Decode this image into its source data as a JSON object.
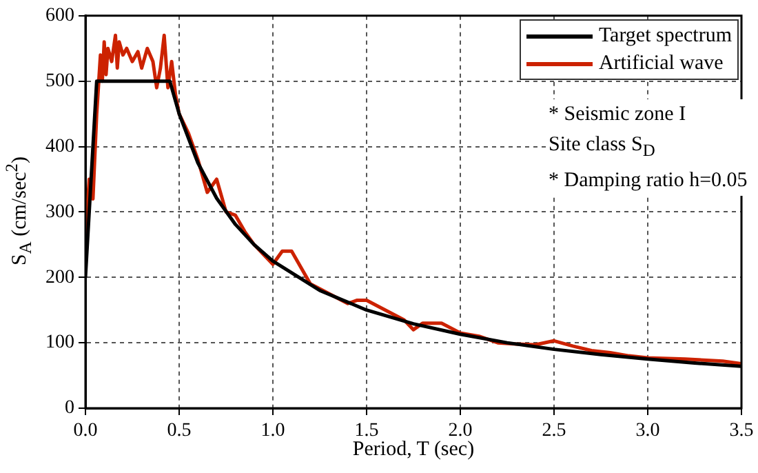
{
  "chart_data": {
    "type": "line",
    "xlabel": "Period, T (sec)",
    "ylabel": "S$_{A}$ (cm/sec$^{2}$)",
    "xlim": [
      0,
      3.5
    ],
    "xticks": [
      {
        "value": 0,
        "label": "0.0"
      },
      {
        "value": 0.5,
        "label": "0.5"
      },
      {
        "value": 1,
        "label": "1.0"
      },
      {
        "value": 1.5,
        "label": "1.5"
      },
      {
        "value": 2,
        "label": "2.0"
      },
      {
        "value": 2.5,
        "label": "2.5"
      },
      {
        "value": 3,
        "label": "3.0"
      },
      {
        "value": 3.5,
        "label": "3.5"
      }
    ],
    "ylim": [
      0,
      600
    ],
    "yticks": [
      0,
      100,
      200,
      300,
      400,
      500,
      600
    ],
    "grid": true,
    "legend": "top right",
    "marker": "none",
    "line_style": "solid",
    "series": [
      {
        "name": "Target spectrum",
        "color": "#000000",
        "x": [
          0,
          0.06,
          0.45,
          0.5,
          0.6,
          0.7,
          0.8,
          0.9,
          1.0,
          1.25,
          1.5,
          1.75,
          2.0,
          2.25,
          2.5,
          2.75,
          3.0,
          3.25,
          3.5
        ],
        "values": [
          200,
          500,
          500,
          450,
          375,
          321,
          281,
          250,
          225,
          180,
          150,
          129,
          113,
          100,
          90,
          82,
          75,
          69,
          64
        ]
      },
      {
        "name": "Artificial wave",
        "color": "#cc2200",
        "x": [
          0,
          0.02,
          0.04,
          0.06,
          0.08,
          0.09,
          0.1,
          0.11,
          0.12,
          0.14,
          0.16,
          0.17,
          0.18,
          0.2,
          0.22,
          0.25,
          0.28,
          0.3,
          0.33,
          0.36,
          0.38,
          0.4,
          0.42,
          0.44,
          0.46,
          0.48,
          0.5,
          0.55,
          0.6,
          0.65,
          0.7,
          0.75,
          0.8,
          0.85,
          0.9,
          1.0,
          1.05,
          1.1,
          1.2,
          1.3,
          1.4,
          1.45,
          1.5,
          1.6,
          1.7,
          1.75,
          1.8,
          1.9,
          2.0,
          2.1,
          2.2,
          2.3,
          2.4,
          2.5,
          2.6,
          2.7,
          2.8,
          2.9,
          3.0,
          3.2,
          3.4,
          3.5
        ],
        "values": [
          260,
          350,
          320,
          450,
          540,
          500,
          560,
          510,
          550,
          530,
          570,
          520,
          560,
          540,
          550,
          530,
          545,
          520,
          550,
          530,
          490,
          520,
          570,
          490,
          530,
          480,
          450,
          420,
          380,
          330,
          350,
          300,
          295,
          270,
          250,
          220,
          240,
          240,
          190,
          175,
          160,
          165,
          165,
          150,
          135,
          120,
          130,
          130,
          115,
          110,
          100,
          98,
          97,
          103,
          95,
          88,
          85,
          80,
          77,
          75,
          72,
          68
        ]
      }
    ],
    "annotations": [
      "* Seismic zone I",
      "Site class S$_{D}$",
      "* Damping ratio h=0.05"
    ]
  }
}
